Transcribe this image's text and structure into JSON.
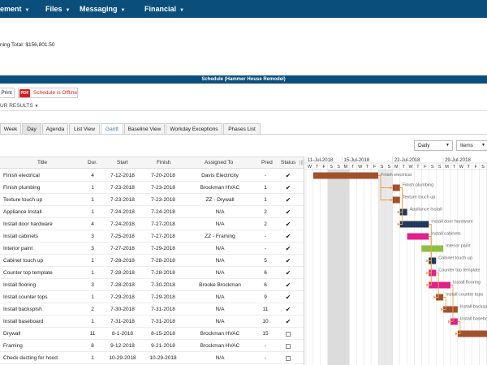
{
  "nav": {
    "items": [
      {
        "label": "ement"
      },
      {
        "label": "Files"
      },
      {
        "label": "Messaging"
      },
      {
        "label": "Financial"
      }
    ]
  },
  "summary": {
    "running_total_label": "ning Total:",
    "running_total_value": "$156,801.50"
  },
  "schedule": {
    "title": "Schedule (Hammer House Remodel)"
  },
  "toolbar": {
    "print_label": "Print",
    "pdf_label": "PDF",
    "offline_label": "Schedule is Offline"
  },
  "results": {
    "label": "UR RESULTS"
  },
  "tabs": [
    {
      "label": "Week"
    },
    {
      "label": "Day"
    },
    {
      "label": "Agenda"
    },
    {
      "label": "List View"
    },
    {
      "label": "Gantt"
    },
    {
      "label": "Baseline View"
    },
    {
      "label": "Workday Exceptions"
    },
    {
      "label": "Phases List"
    }
  ],
  "controls": {
    "scale": "Daily",
    "items": "Items"
  },
  "grid": {
    "columns": {
      "title": "Title",
      "dur": "Dur.",
      "start": "Start",
      "finish": "Finish",
      "assigned": "Assigned To",
      "pred": "Pred",
      "status": "Status"
    },
    "rows": [
      {
        "title": "Finish electrical",
        "dur": "4",
        "start": "7-12-2018",
        "finish": "7-20-2018",
        "assigned": "Davis Electricity",
        "pred": "-",
        "status": "checked"
      },
      {
        "title": "Finish plumbing",
        "dur": "1",
        "start": "7-23-2018",
        "finish": "7-23-2018",
        "assigned": "Brockman HVAC",
        "pred": "1",
        "status": "checked"
      },
      {
        "title": "Texture touch up",
        "dur": "1",
        "start": "7-23-2018",
        "finish": "7-23-2018",
        "assigned": "ZZ - Drywall",
        "pred": "1",
        "status": "checked"
      },
      {
        "title": "Appliance Install",
        "dur": "1",
        "start": "7-24-2018",
        "finish": "7-24-2018",
        "assigned": "N/A",
        "pred": "2",
        "status": "checked"
      },
      {
        "title": "Install door hardware",
        "dur": "4",
        "start": "7-24-2018",
        "finish": "7-27-2018",
        "assigned": "N/A",
        "pred": "2",
        "status": "checked"
      },
      {
        "title": "Install cabinets",
        "dur": "3",
        "start": "7-25-2018",
        "finish": "7-27-2018",
        "assigned": "ZZ - Framing",
        "pred": "-",
        "status": "checked"
      },
      {
        "title": "Interior paint",
        "dur": "3",
        "start": "7-27-2018",
        "finish": "7-29-2018",
        "assigned": "N/A",
        "pred": "-",
        "status": "checked"
      },
      {
        "title": "Cabinet touch up",
        "dur": "1",
        "start": "7-28-2018",
        "finish": "7-28-2018",
        "assigned": "N/A",
        "pred": "5",
        "status": "checked"
      },
      {
        "title": "Counter top template",
        "dur": "1",
        "start": "7-28-2018",
        "finish": "7-28-2018",
        "assigned": "N/A",
        "pred": "6",
        "status": "checked"
      },
      {
        "title": "Install flooring",
        "dur": "3",
        "start": "7-28-2018",
        "finish": "7-30-2018",
        "assigned": "Brooke Brockman",
        "pred": "6",
        "status": "checked"
      },
      {
        "title": "Install counter tops",
        "dur": "1",
        "start": "7-29-2018",
        "finish": "7-29-2018",
        "assigned": "N/A",
        "pred": "9",
        "status": "checked"
      },
      {
        "title": "Install backsplsh",
        "dur": "2",
        "start": "7-30-2018",
        "finish": "7-31-2018",
        "assigned": "N/A",
        "pred": "11",
        "status": "checked"
      },
      {
        "title": "Install baseboard",
        "dur": "1",
        "start": "7-31-2018",
        "finish": "7-31-2018",
        "assigned": "N/A",
        "pred": "10",
        "status": "checked"
      },
      {
        "title": "Drywall",
        "dur": "11",
        "start": "8-1-2018",
        "finish": "8-15-2018",
        "assigned": "Brockman HVAC",
        "pred": "15",
        "status": "unchecked"
      },
      {
        "title": "Framing",
        "dur": "8",
        "start": "9-12-2018",
        "finish": "9-21-2018",
        "assigned": "Brockman HVAC",
        "pred": "-",
        "status": "unchecked"
      },
      {
        "title": "Check ducting for hood",
        "dur": "1",
        "start": "10-29-2018",
        "finish": "10-29-2018",
        "assigned": "N/A",
        "pred": "-",
        "status": "unchecked"
      }
    ]
  },
  "gantt": {
    "week_labels": [
      "11-Jul-2018",
      "15-Jul-2018",
      "22-Jul-2018",
      "29-Jul-2018"
    ],
    "day_letters": [
      "W",
      "T",
      "F",
      "S",
      "S",
      "M",
      "T",
      "W",
      "T",
      "F",
      "S",
      "S",
      "M",
      "T",
      "W",
      "T",
      "F",
      "S",
      "S",
      "M",
      "T",
      "W",
      "T",
      "F",
      "S",
      "S",
      "M",
      "T",
      "W",
      "T",
      "F",
      "S"
    ],
    "bars": [
      {
        "label": "Finish electrical",
        "start": "7-12-2018",
        "days": 9,
        "color": "#a0522d"
      },
      {
        "label": "Finish plumbing",
        "start": "7-23-2018",
        "days": 1,
        "color": "#a0522d"
      },
      {
        "label": "Texture touch up",
        "start": "7-23-2018",
        "days": 1,
        "color": "#a0522d"
      },
      {
        "label": "Appliance Install",
        "start": "7-24-2018",
        "days": 1,
        "color": "#1f3a5a"
      },
      {
        "label": "Install door hardware",
        "start": "7-24-2018",
        "days": 4,
        "color": "#1f3a5a"
      },
      {
        "label": "Install cabinets",
        "start": "7-25-2018",
        "days": 3,
        "color": "#e0218a"
      },
      {
        "label": "Interior paint",
        "start": "7-27-2018",
        "days": 3,
        "color": "#8cbf3f"
      },
      {
        "label": "Cabinet touch up",
        "start": "7-28-2018",
        "days": 1,
        "color": "#1f3a5a"
      },
      {
        "label": "Counter top template",
        "start": "7-28-2018",
        "days": 1,
        "color": "#e0218a"
      },
      {
        "label": "Install flooring",
        "start": "7-28-2018",
        "days": 3,
        "color": "#e0218a"
      },
      {
        "label": "Install counter tops",
        "start": "7-29-2018",
        "days": 1,
        "color": "#a0522d"
      },
      {
        "label": "Install backsplsh",
        "start": "7-30-2018",
        "days": 2,
        "color": "#a0522d"
      },
      {
        "label": "Install baseboard",
        "start": "7-31-2018",
        "days": 1,
        "color": "#e0218a"
      },
      {
        "label": "",
        "start": "8-1-2018",
        "days": 11,
        "color": "#a0522d"
      },
      {
        "label": "",
        "start": "9-12-2018",
        "days": 8,
        "color": "#a0522d"
      },
      {
        "label": "",
        "start": "10-29-2018",
        "days": 1,
        "color": "#a0522d"
      }
    ],
    "links": [
      [
        0,
        1
      ],
      [
        0,
        2
      ],
      [
        1,
        3
      ],
      [
        1,
        4
      ],
      [
        4,
        7
      ],
      [
        5,
        8
      ],
      [
        5,
        9
      ],
      [
        8,
        10
      ],
      [
        10,
        11
      ],
      [
        9,
        12
      ],
      [
        12,
        13
      ]
    ],
    "colors": {
      "link": "#f0a04b",
      "weekend": "#e9e9e9",
      "today": "#dcdcdc"
    }
  }
}
